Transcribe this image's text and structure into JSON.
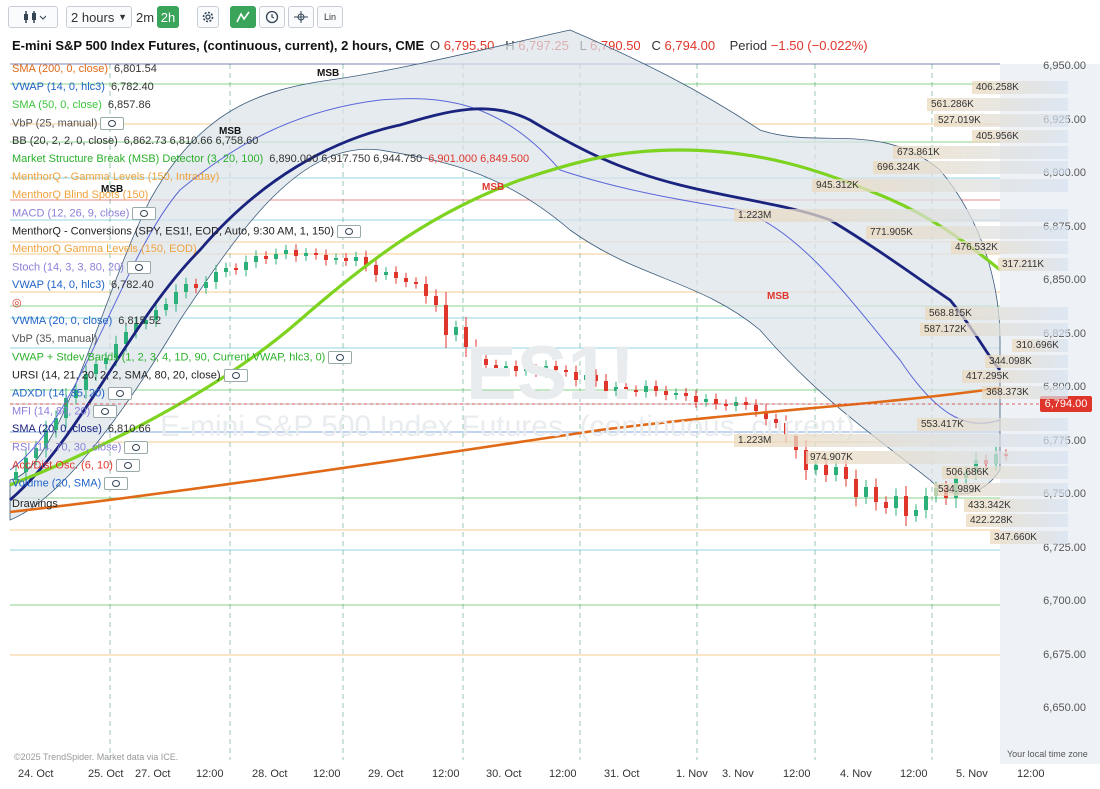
{
  "toolbar": {
    "interval_label": "2 hours",
    "quick_intervals": [
      "2m",
      "2h"
    ],
    "icons": [
      "chart-type-icon",
      "settings-icon",
      "drawing-mode-icon",
      "clock-icon",
      "crosshair-icon",
      "log-scale-icon"
    ],
    "log_scale_label": "Lin"
  },
  "header": {
    "title": "E-mini S&P 500 Index Futures, (continuous, current), 2 hours, CME",
    "open_key": "O",
    "open": "6,795.50",
    "high_key": "H",
    "high": "6,797.25",
    "low_key": "L",
    "low": "6,790.50",
    "close_key": "C",
    "close": "6,794.00",
    "period_key": "Period",
    "period": "−1.50 (−0.022%)"
  },
  "indicators": [
    {
      "label": "SMA (200, 0, close)",
      "value": "6,801.54",
      "color": "#e06a17"
    },
    {
      "label": "VWAP (14, 0, hlc3)",
      "value": "6,782.40",
      "color": "#1f63c6"
    },
    {
      "label": "SMA (50, 0, close)",
      "value": "6,857.86",
      "color": "#3cc53c"
    },
    {
      "label": "VbP (25, manual)",
      "value": "",
      "color": "#555555",
      "eye": true
    },
    {
      "label": "BB (20, 2, 2, 0, close)",
      "value": "6,862.73 6,810.66 6,758.60",
      "color": "#333333"
    },
    {
      "label": "Market Structure Break (MSB) Detector (3, 20, 100)",
      "value": "6,890.000 6,917.750 6,944.750",
      "value2": "6,901.000 6,849.500",
      "color": "#2bb02b"
    },
    {
      "label": "MenthorQ - Gamma Levels (150, Intraday)",
      "value": "",
      "color": "#f0a23c"
    },
    {
      "label": "MenthorQ Blind Spots (150)",
      "value": "",
      "color": "#f0a23c"
    },
    {
      "label": "MACD (12, 26, 9, close)",
      "value": "",
      "color": "#8a7fd8",
      "eye": true
    },
    {
      "label": "MenthorQ - Conversions (SPY, ES1!, EOD, Auto, 9:30 AM, 1, 150)",
      "value": "",
      "color": "#222222",
      "eye": true
    },
    {
      "label": "MenthorQ Gamma Levels (150, EOD)",
      "value": "",
      "color": "#f0a23c"
    },
    {
      "label": "Stoch (14, 3, 3, 80, 20)",
      "value": "",
      "color": "#8a7fd8",
      "eye": true
    },
    {
      "label": "VWAP (14, 0, hlc3)",
      "value": "6,782.40",
      "color": "#1f63c6"
    },
    {
      "label": "",
      "value": "",
      "color": "#cccccc"
    },
    {
      "label": "VWMA (20, 0, close)",
      "value": "6,815.52",
      "color": "#1f63c6"
    },
    {
      "label": "VbP (35, manual)",
      "value": "",
      "color": "#555555"
    },
    {
      "label": "VWAP + Stdev Bands (1, 2, 3, 4, 1D, 90, Current VWAP, hlc3, 0)",
      "value": "",
      "color": "#2bb02b",
      "eye": true
    },
    {
      "label": "URSI (14, 21, 20, 2, 2, SMA, 80, 20, close)",
      "value": "",
      "color": "#222222",
      "eye": true
    },
    {
      "label": "ADXDI (14, 35, 20)",
      "value": "",
      "color": "#1f63c6",
      "eye": true
    },
    {
      "label": "MFI (14, 80, 20)",
      "value": "",
      "color": "#8a7fd8",
      "eye": true
    },
    {
      "label": "SMA (20, 0, close)",
      "value": "6,810.66",
      "color": "#1a237e"
    },
    {
      "label": "RSI (14, 70, 30, close)",
      "value": "",
      "color": "#8a7fd8",
      "eye": true
    },
    {
      "label": "Acc/Dist Osc. (6, 10)",
      "value": "",
      "color": "#e0352b",
      "eye": true
    },
    {
      "label": "Volume (20, SMA)",
      "value": "",
      "color": "#1f63c6",
      "eye": true
    },
    {
      "label": "Drawings",
      "value": "",
      "color": "#222222"
    }
  ],
  "price_axis": [
    "6,950.00",
    "6,925.00",
    "6,900.00",
    "6,875.00",
    "6,850.00",
    "6,825.00",
    "6,800.00",
    "6,775.00",
    "6,750.00",
    "6,725.00",
    "6,700.00",
    "6,675.00",
    "6,650.00"
  ],
  "current_price": "6,794.00",
  "time_axis": [
    "24. Oct",
    "25. Oct",
    "27. Oct",
    "12:00",
    "28. Oct",
    "12:00",
    "29. Oct",
    "12:00",
    "30. Oct",
    "12:00",
    "31. Oct",
    "1. Nov",
    "3. Nov",
    "12:00",
    "4. Nov",
    "12:00",
    "5. Nov",
    "12:00"
  ],
  "volume_profile": [
    "406.258K",
    "561.286K",
    "527.019K",
    "405.956K",
    "673.861K",
    "696.324K",
    "945.312K",
    "1.223M",
    "771.905K",
    "476.532K",
    "317.211K",
    "568.815K",
    "587.172K",
    "310.696K",
    "344.098K",
    "417.295K",
    "368.373K",
    "553.417K",
    "1.223M",
    "974.907K",
    "506.686K",
    "534.989K",
    "433.342K",
    "422.228K",
    "347.660K"
  ],
  "msb_labels": [
    "MSB",
    "MSB",
    "MSB",
    "MSB",
    "MSB"
  ],
  "watermark": {
    "symbol": "ES1!",
    "name": "E-mini S&P 500 Index Futures, (continuous, current)"
  },
  "footer": {
    "credit": "©2025 TrendSpider. Market data via ICE.",
    "timezone": "Your local time zone"
  },
  "colors": {
    "up": "#2bb07a",
    "down": "#e0352b",
    "sma200": "#e06a17",
    "sma50": "#7ed321",
    "sma20": "#1a237e",
    "accent": "#3aa55a"
  }
}
